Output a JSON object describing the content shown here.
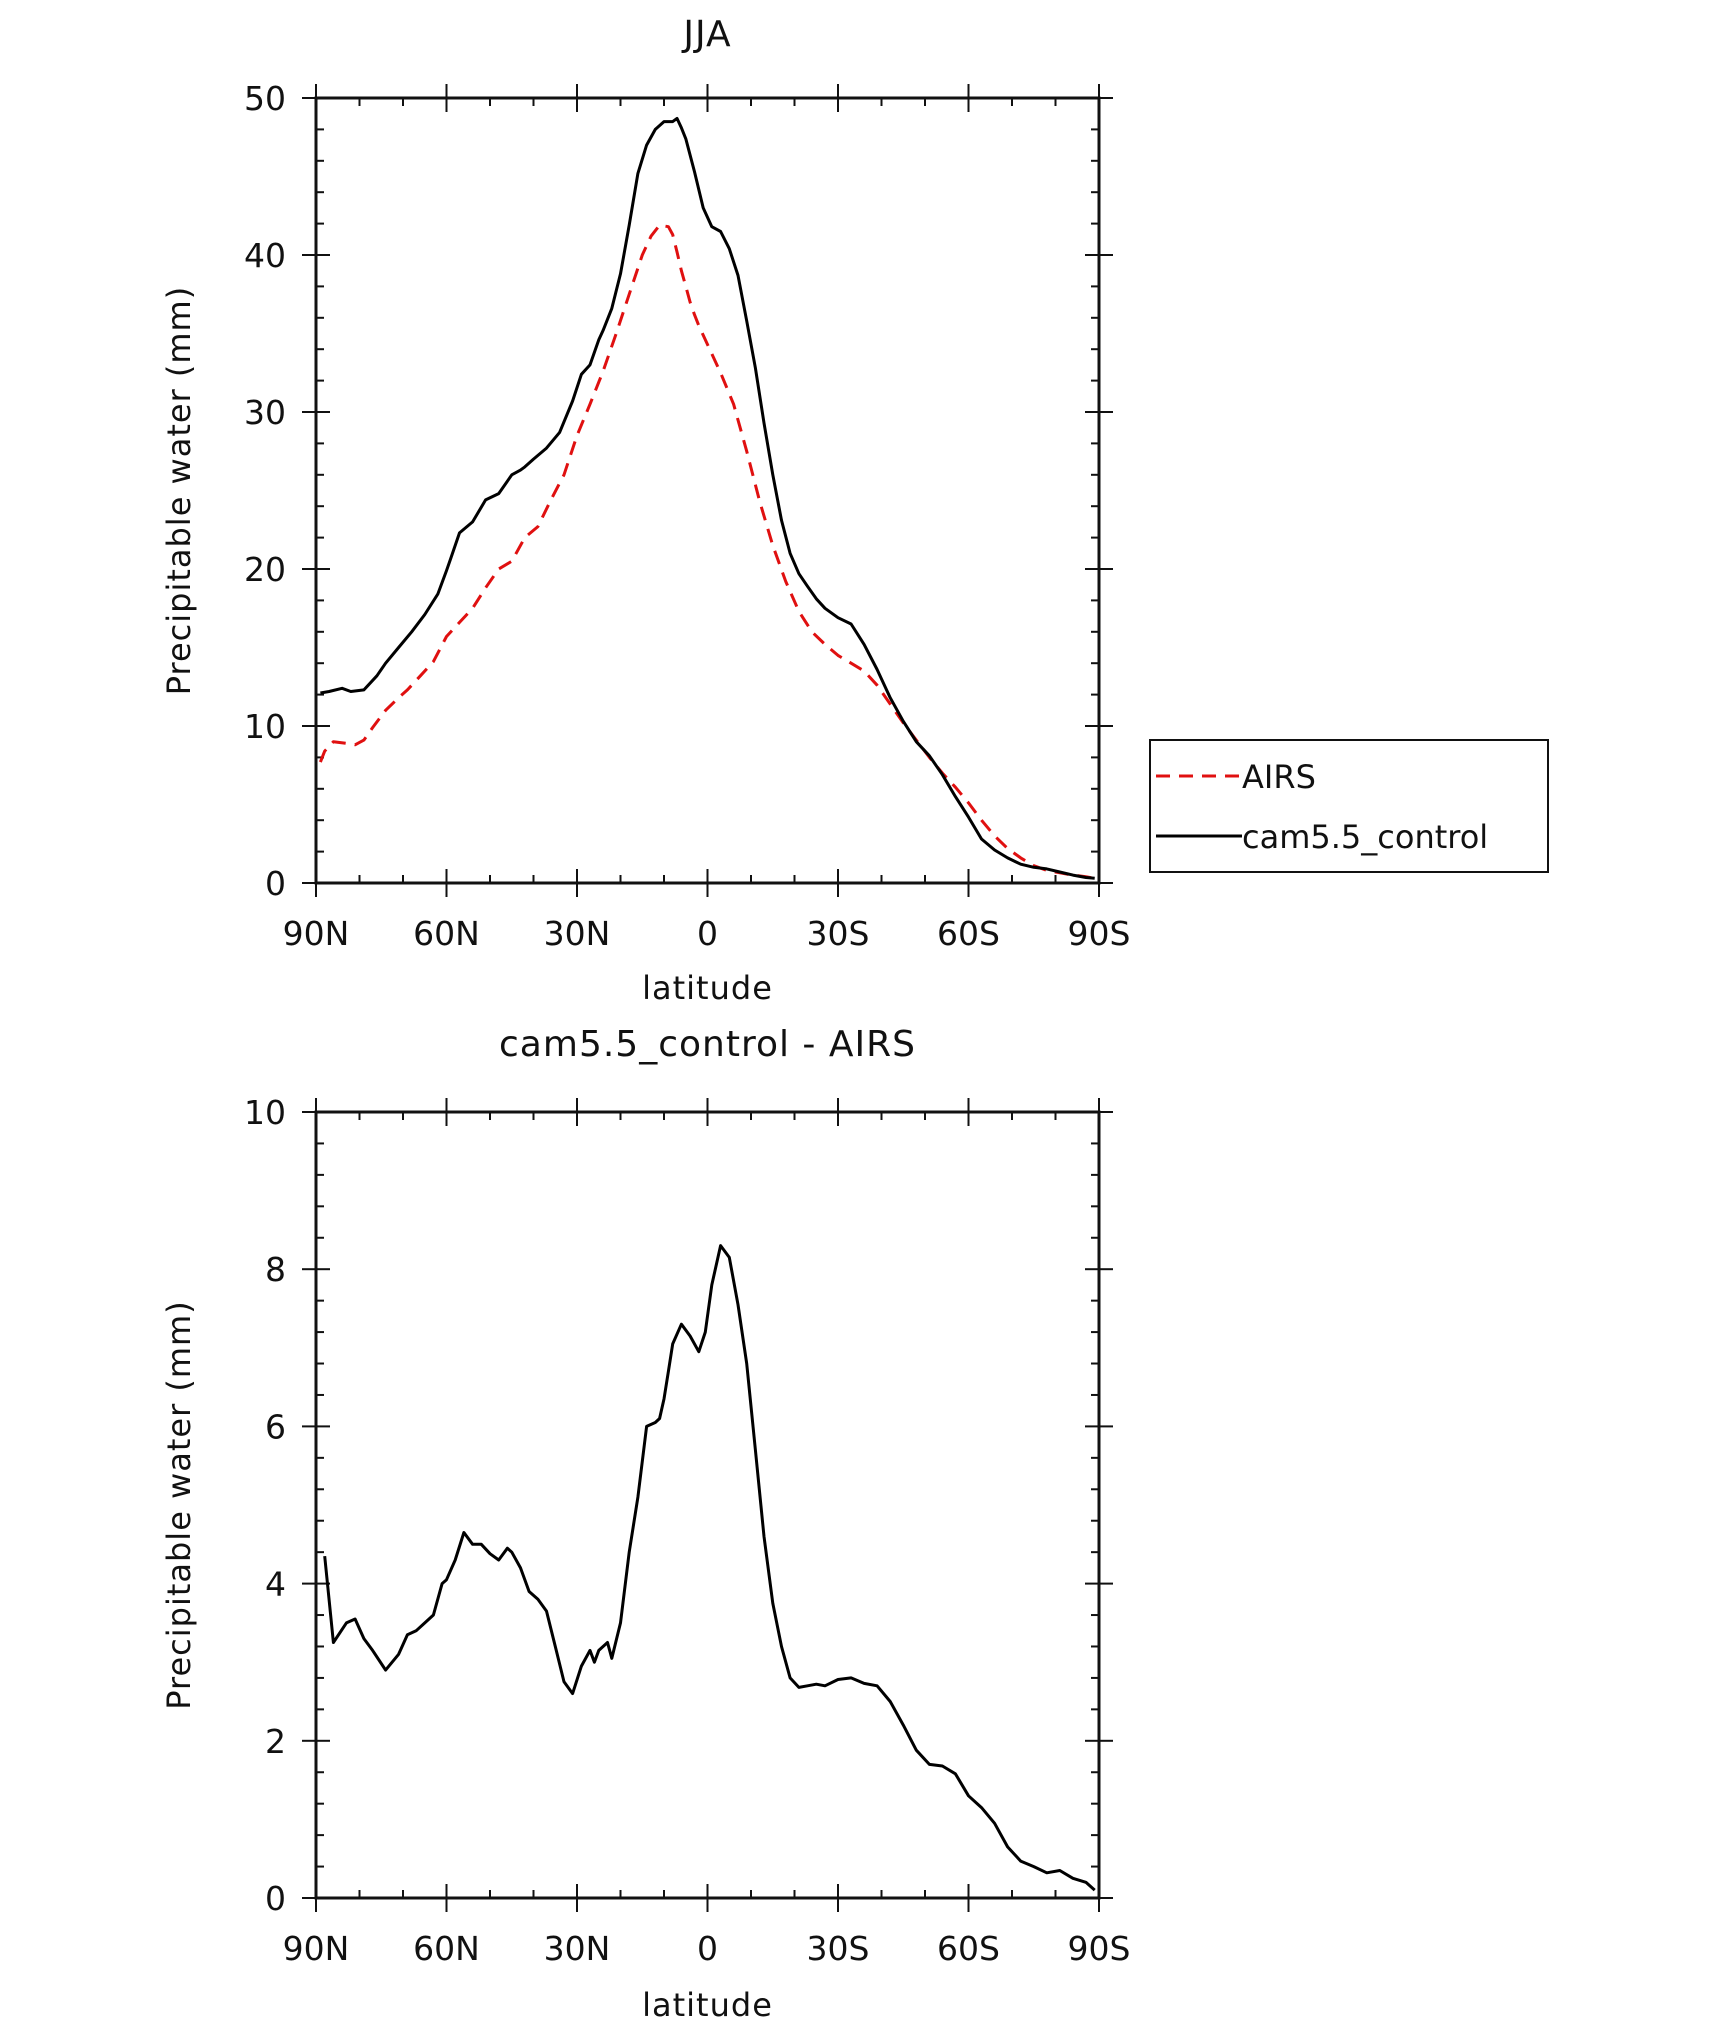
{
  "chart_data": [
    {
      "type": "line",
      "title": "JJA",
      "xlabel": "latitude",
      "ylabel": "Precipitable water (mm)",
      "xlim": [
        -90,
        90
      ],
      "ylim": [
        0,
        50
      ],
      "x_ticks": [
        {
          "value": -90,
          "label": "90N"
        },
        {
          "value": -60,
          "label": "60N"
        },
        {
          "value": -30,
          "label": "30N"
        },
        {
          "value": 0,
          "label": "0"
        },
        {
          "value": 30,
          "label": "30S"
        },
        {
          "value": 60,
          "label": "60S"
        },
        {
          "value": 90,
          "label": "90S"
        }
      ],
      "y_ticks": [
        {
          "value": 0,
          "label": "0"
        },
        {
          "value": 10,
          "label": "10"
        },
        {
          "value": 20,
          "label": "20"
        },
        {
          "value": 30,
          "label": "30"
        },
        {
          "value": 40,
          "label": "40"
        },
        {
          "value": 50,
          "label": "50"
        }
      ],
      "legend": {
        "position": "right",
        "entries": [
          "AIRS",
          "cam5.5_control"
        ]
      },
      "series": [
        {
          "name": "AIRS",
          "color": "#e01010",
          "style": "dashed",
          "x": [
            -89,
            -88,
            -86,
            -83,
            -81,
            -79,
            -77,
            -74,
            -71,
            -69,
            -66,
            -63,
            -60,
            -57,
            -54,
            -51,
            -48,
            -45,
            -42,
            -39,
            -36,
            -33,
            -30,
            -27,
            -24,
            -21,
            -18,
            -15,
            -13,
            -11,
            -9,
            -8,
            -7,
            -6,
            -5,
            -4,
            -3,
            -2,
            0,
            3,
            6,
            9,
            12,
            15,
            18,
            21,
            24,
            27,
            30,
            33,
            36,
            39,
            42,
            45,
            48,
            51,
            54,
            57,
            60,
            63,
            66,
            69,
            72,
            75,
            78,
            81,
            84,
            87,
            89
          ],
          "y": [
            7.7,
            8.4,
            9,
            8.9,
            8.8,
            9.1,
            9.9,
            11,
            11.8,
            12.3,
            13.2,
            14.1,
            15.7,
            16.6,
            17.5,
            18.8,
            20,
            20.5,
            22,
            22.7,
            24.4,
            26,
            28.5,
            30.5,
            32.6,
            35,
            37.5,
            40,
            41.2,
            41.9,
            41.8,
            41.3,
            40.2,
            39,
            38,
            37,
            36.2,
            35.5,
            34.3,
            32.5,
            30.5,
            27.5,
            24.3,
            21.5,
            19.2,
            17.3,
            16,
            15.2,
            14.5,
            14,
            13.5,
            12.6,
            11.4,
            10.2,
            9.1,
            8,
            7,
            6.1,
            5.1,
            4,
            3,
            2.2,
            1.6,
            1.1,
            0.8,
            0.65,
            0.5,
            0.4,
            0.3
          ]
        },
        {
          "name": "cam5.5_control",
          "color": "#000000",
          "style": "solid",
          "x": [
            -89,
            -87,
            -84,
            -82,
            -79,
            -76,
            -74,
            -71,
            -68,
            -65,
            -62,
            -60,
            -59,
            -57,
            -54,
            -51,
            -48,
            -45,
            -43,
            -42,
            -40,
            -37,
            -34,
            -31,
            -29,
            -27,
            -25,
            -24,
            -22,
            -20,
            -18,
            -16,
            -14,
            -12,
            -10,
            -8,
            -7,
            -6,
            -5,
            -3,
            -1,
            1,
            3,
            5,
            7,
            9,
            11,
            13,
            15,
            17,
            19,
            21,
            23,
            25,
            27,
            30,
            33,
            36,
            39,
            42,
            45,
            48,
            51,
            54,
            57,
            60,
            63,
            66,
            69,
            72,
            75,
            78,
            81,
            84,
            87,
            89
          ],
          "y": [
            12.1,
            12.2,
            12.4,
            12.2,
            12.3,
            13.2,
            14,
            15,
            16,
            17.1,
            18.4,
            19.9,
            20.7,
            22.3,
            23,
            24.4,
            24.8,
            26,
            26.3,
            26.5,
            27,
            27.7,
            28.7,
            30.7,
            32.4,
            33,
            34.6,
            35.2,
            36.6,
            38.8,
            41.9,
            45.2,
            47,
            48,
            48.5,
            48.5,
            48.7,
            48.1,
            47.4,
            45.3,
            43,
            41.8,
            41.5,
            40.4,
            38.7,
            35.8,
            32.8,
            29.3,
            26,
            23.1,
            21,
            19.7,
            18.9,
            18.1,
            17.5,
            16.9,
            16.5,
            15.2,
            13.6,
            11.8,
            10.3,
            9,
            8.1,
            6.9,
            5.5,
            4.2,
            2.8,
            2.1,
            1.6,
            1.2,
            1,
            0.9,
            0.7,
            0.5,
            0.35,
            0.3
          ]
        }
      ]
    },
    {
      "type": "line",
      "title": "cam5.5_control - AIRS",
      "xlabel": "latitude",
      "ylabel": "Precipitable water (mm)",
      "xlim": [
        -90,
        90
      ],
      "ylim": [
        0,
        10
      ],
      "x_ticks": [
        {
          "value": -90,
          "label": "90N"
        },
        {
          "value": -60,
          "label": "60N"
        },
        {
          "value": -30,
          "label": "30N"
        },
        {
          "value": 0,
          "label": "0"
        },
        {
          "value": 30,
          "label": "30S"
        },
        {
          "value": 60,
          "label": "60S"
        },
        {
          "value": 90,
          "label": "90S"
        }
      ],
      "y_ticks": [
        {
          "value": 0,
          "label": "0"
        },
        {
          "value": 2,
          "label": "2"
        },
        {
          "value": 4,
          "label": "4"
        },
        {
          "value": 6,
          "label": "6"
        },
        {
          "value": 8,
          "label": "8"
        },
        {
          "value": 10,
          "label": "10"
        }
      ],
      "series": [
        {
          "name": "cam5.5_control - AIRS",
          "color": "#000000",
          "style": "solid",
          "x": [
            -88,
            -86,
            -83,
            -81,
            -79,
            -77,
            -74,
            -71,
            -69,
            -67,
            -65,
            -63,
            -61,
            -60,
            -58,
            -56,
            -54,
            -52,
            -50,
            -48,
            -46,
            -45,
            -43,
            -41,
            -39,
            -37,
            -35,
            -33,
            -31,
            -29,
            -27,
            -26,
            -25,
            -23,
            -22,
            -20,
            -18,
            -16,
            -14,
            -12,
            -11,
            -10,
            -9,
            -8,
            -6,
            -4,
            -2,
            -0.5,
            1,
            3,
            5,
            7,
            9,
            11,
            13,
            15,
            17,
            19,
            21,
            23,
            25,
            27,
            30,
            33,
            36,
            39,
            42,
            45,
            48,
            51,
            54,
            57,
            60,
            63,
            66,
            69,
            72,
            75,
            78,
            81,
            84,
            87,
            89
          ],
          "y": [
            4.35,
            3.25,
            3.5,
            3.55,
            3.3,
            3.15,
            2.9,
            3.1,
            3.35,
            3.4,
            3.5,
            3.6,
            4,
            4.05,
            4.3,
            4.65,
            4.5,
            4.5,
            4.38,
            4.3,
            4.45,
            4.4,
            4.2,
            3.9,
            3.8,
            3.65,
            3.2,
            2.75,
            2.6,
            2.95,
            3.15,
            3.0,
            3.15,
            3.25,
            3.05,
            3.5,
            4.4,
            5.1,
            6,
            6.05,
            6.1,
            6.35,
            6.7,
            7.05,
            7.3,
            7.15,
            6.95,
            7.2,
            7.8,
            8.3,
            8.15,
            7.55,
            6.8,
            5.7,
            4.6,
            3.75,
            3.2,
            2.8,
            2.68,
            2.7,
            2.72,
            2.7,
            2.78,
            2.8,
            2.73,
            2.7,
            2.5,
            2.2,
            1.88,
            1.7,
            1.68,
            1.58,
            1.3,
            1.15,
            0.95,
            0.65,
            0.47,
            0.4,
            0.32,
            0.35,
            0.25,
            0.2,
            0.1
          ]
        }
      ]
    }
  ]
}
